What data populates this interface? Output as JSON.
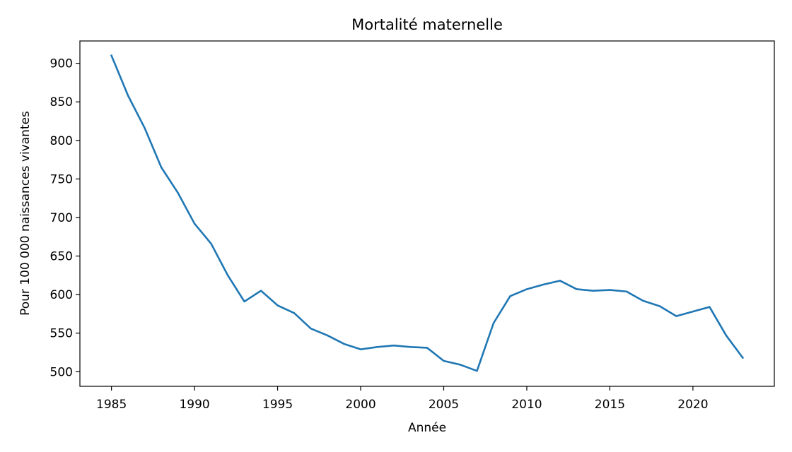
{
  "chart_data": {
    "type": "line",
    "title": "Mortalité maternelle",
    "xlabel": "Année",
    "ylabel": "Pour 100 000 naissances vivantes",
    "xlim": [
      1983.1,
      2024.9
    ],
    "ylim": [
      481,
      929
    ],
    "xticks": [
      1985,
      1990,
      1995,
      2000,
      2005,
      2010,
      2015,
      2020
    ],
    "yticks": [
      500,
      550,
      600,
      650,
      700,
      750,
      800,
      850,
      900
    ],
    "grid": false,
    "color": "#1f77b4",
    "series": [
      {
        "x": [
          1985,
          1986,
          1987,
          1988,
          1989,
          1990,
          1991,
          1992,
          1993,
          1994,
          1995,
          1996,
          1997,
          1998,
          1999,
          2000,
          2001,
          2002,
          2003,
          2004,
          2005,
          2006,
          2007,
          2008,
          2009,
          2010,
          2011,
          2012,
          2013,
          2014,
          2015,
          2016,
          2017,
          2018,
          2019,
          2020,
          2021,
          2022,
          2023
        ],
        "values": [
          910,
          858,
          816,
          765,
          732,
          692,
          666,
          625,
          591,
          605,
          586,
          576,
          556,
          547,
          536,
          529,
          532,
          534,
          532,
          531,
          514,
          509,
          501,
          563,
          598,
          607,
          613,
          618,
          607,
          605,
          606,
          604,
          592,
          585,
          572,
          578,
          584,
          547,
          518
        ]
      }
    ]
  }
}
